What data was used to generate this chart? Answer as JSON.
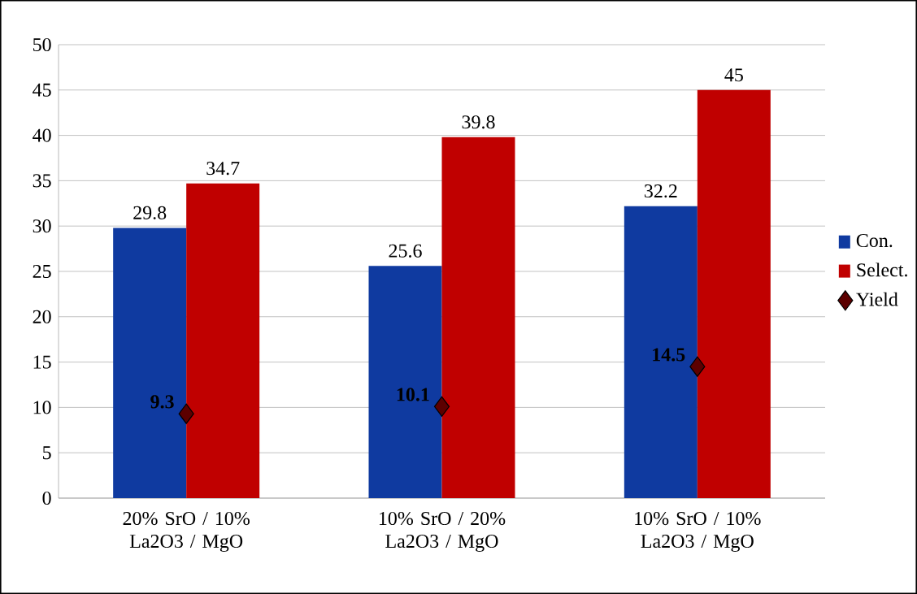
{
  "chart_data": {
    "type": "bar",
    "categories": [
      "20% SrO / 10% La2O3 / MgO",
      "10% SrO / 20% La2O3 / MgO",
      "10% SrO / 10% La2O3 / MgO"
    ],
    "series": [
      {
        "name": "Con.",
        "color": "#0f3aa0",
        "values": [
          29.8,
          25.6,
          32.2
        ]
      },
      {
        "name": "Select.",
        "color": "#c00000",
        "values": [
          34.7,
          39.8,
          45
        ]
      },
      {
        "name": "Yield",
        "type": "scatter",
        "color": "#5c0000",
        "x": [
          "20% SrO / 10% La2O3 / MgO",
          "10% SrO / 20% La2O3 / MgO",
          "10% SrO / 10% La2O3 / MgO"
        ],
        "values": [
          9.3,
          10.1,
          14.5
        ]
      }
    ],
    "ylim": [
      0,
      50
    ],
    "yticks": [
      0,
      5,
      10,
      15,
      20,
      25,
      30,
      35,
      40,
      45,
      50
    ],
    "grid": "y",
    "legend": "right",
    "marker": "diamond",
    "data_labels": true
  }
}
